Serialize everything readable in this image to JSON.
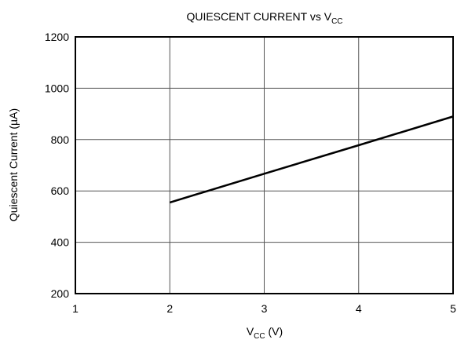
{
  "chart_data": {
    "type": "line",
    "title": [
      "QUIESCENT CURRENT vs V",
      "CC"
    ],
    "xlabel": [
      "V",
      "CC",
      " (V)"
    ],
    "ylabel": "Quiescent Current (µA)",
    "x": [
      2,
      3,
      4,
      5
    ],
    "series": [
      {
        "name": "Quiescent Current",
        "color": "#000000",
        "values": [
          555,
          667,
          778,
          890
        ]
      }
    ],
    "xlim": [
      1,
      5
    ],
    "xticks": [
      1,
      2,
      3,
      4,
      5
    ],
    "ylim": [
      200,
      1200
    ],
    "yticks": [
      200,
      400,
      600,
      800,
      1000,
      1200
    ],
    "grid": true
  }
}
